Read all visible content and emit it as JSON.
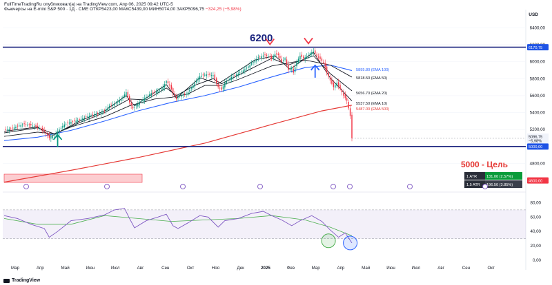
{
  "header": {
    "text_main": "FullTimeTradingRu опубликовал(а) на TradingView.com, Апр 06, 2025 09:42 UTC-5",
    "text_symbol": "Фьючерсы на E-mini S&P 500 · 1Д · CME  ОТКР5423,00  МАКС5439,00  МИН5074,00  ЗАКР5096,75 ",
    "text_change": "−324,25 (−5,98%)"
  },
  "currency": "USD",
  "footer": {
    "brand": "TradingView"
  },
  "colors": {
    "ema100": "#2962ff",
    "ema500": "#e53935",
    "level": "#1a237e",
    "rsi": "#7e57c2",
    "up": "#089981",
    "down": "#f23645"
  },
  "annotations": {
    "peak_label": "6200",
    "target_label": "5000 - Цель",
    "atr_rows": [
      {
        "label": "1 ATR",
        "value": "131.00 (2.57%)"
      },
      {
        "label": "1.5 ATR",
        "value": "196.50 (3.85%)"
      }
    ]
  },
  "chart_data": [
    {
      "type": "candlestick",
      "title": "",
      "price_ylim": [
        4520,
        6500
      ],
      "price_ticks": [
        {
          "label": "6400,00",
          "value": 6400
        },
        {
          "label": "6200,00",
          "value": 6200
        },
        {
          "label": "6000,00",
          "value": 6000
        },
        {
          "label": "5800,00",
          "value": 5800
        },
        {
          "label": "5600,00",
          "value": 5600
        },
        {
          "label": "5400,00",
          "value": 5400
        },
        {
          "label": "5200,00",
          "value": 5200
        },
        {
          "label": "4800,00",
          "value": 4800
        }
      ],
      "month_labels": [
        "Мар",
        "Апр",
        "Май",
        "Июн",
        "Июл",
        "Авг",
        "Сен",
        "Окт",
        "Ноя",
        "Дек",
        "2025",
        "Фев",
        "Мар",
        "Апр",
        "Май",
        "Июн",
        "Июл",
        "Авг",
        "Сен",
        "Окт"
      ],
      "horizontal_levels": [
        {
          "label": "6170,75",
          "value": 6170.75
        },
        {
          "label": "5000,00",
          "value": 5000
        }
      ],
      "price_close_label": "5096,75",
      "price_close_change": "−5,98%",
      "low_tag": "4600,00",
      "price_path": [
        [
          0,
          5190
        ],
        [
          4,
          5210
        ],
        [
          8,
          5240
        ],
        [
          12,
          5265
        ],
        [
          16,
          5250
        ],
        [
          20,
          5230
        ],
        [
          24,
          5180
        ],
        [
          27,
          5100
        ],
        [
          30,
          5130
        ],
        [
          33,
          5200
        ],
        [
          36,
          5260
        ],
        [
          40,
          5290
        ],
        [
          44,
          5310
        ],
        [
          48,
          5340
        ],
        [
          52,
          5370
        ],
        [
          56,
          5390
        ],
        [
          60,
          5420
        ],
        [
          63,
          5480
        ],
        [
          66,
          5500
        ],
        [
          70,
          5560
        ],
        [
          73,
          5640
        ],
        [
          75,
          5520
        ],
        [
          77,
          5450
        ],
        [
          80,
          5500
        ],
        [
          84,
          5570
        ],
        [
          88,
          5630
        ],
        [
          92,
          5650
        ],
        [
          95,
          5700
        ],
        [
          97,
          5770
        ],
        [
          99,
          5720
        ],
        [
          101,
          5630
        ],
        [
          103,
          5560
        ],
        [
          105,
          5600
        ],
        [
          109,
          5620
        ],
        [
          113,
          5720
        ],
        [
          117,
          5830
        ],
        [
          121,
          5850
        ],
        [
          125,
          5840
        ],
        [
          128,
          5700
        ],
        [
          130,
          5670
        ],
        [
          132,
          5750
        ],
        [
          136,
          5820
        ],
        [
          140,
          5860
        ],
        [
          144,
          5910
        ],
        [
          148,
          5980
        ],
        [
          152,
          6050
        ],
        [
          156,
          6080
        ],
        [
          160,
          6040
        ],
        [
          162,
          6090
        ],
        [
          164,
          6080
        ],
        [
          166,
          6000
        ],
        [
          168,
          6040
        ],
        [
          170,
          5900
        ],
        [
          172,
          5930
        ],
        [
          173,
          5870
        ],
        [
          175,
          6000
        ],
        [
          177,
          6070
        ],
        [
          179,
          6040
        ],
        [
          181,
          6060
        ],
        [
          183,
          6100
        ],
        [
          185,
          6120
        ],
        [
          187,
          6070
        ],
        [
          189,
          6030
        ],
        [
          191,
          5990
        ],
        [
          193,
          5870
        ],
        [
          195,
          5780
        ],
        [
          197,
          5700
        ],
        [
          199,
          5750
        ],
        [
          201,
          5680
        ],
        [
          203,
          5600
        ],
        [
          205,
          5540
        ],
        [
          207,
          5360
        ],
        [
          208,
          5096.75
        ]
      ],
      "series": [
        {
          "name": "5895.80 (EMA 100)",
          "values": [
            [
              0,
              5070
            ],
            [
              20,
              5110
            ],
            [
              40,
              5190
            ],
            [
              60,
              5300
            ],
            [
              80,
              5420
            ],
            [
              100,
              5520
            ],
            [
              120,
              5600
            ],
            [
              140,
              5700
            ],
            [
              160,
              5820
            ],
            [
              180,
              5930
            ],
            [
              195,
              5960
            ],
            [
              208,
              5895.8
            ]
          ]
        },
        {
          "name": "5818.50 (EMA 50)",
          "values": [
            [
              0,
              5120
            ],
            [
              20,
              5170
            ],
            [
              30,
              5150
            ],
            [
              40,
              5230
            ],
            [
              60,
              5350
            ],
            [
              75,
              5480
            ],
            [
              90,
              5560
            ],
            [
              100,
              5580
            ],
            [
              110,
              5620
            ],
            [
              120,
              5720
            ],
            [
              130,
              5720
            ],
            [
              140,
              5790
            ],
            [
              160,
              5950
            ],
            [
              180,
              6020
            ],
            [
              195,
              5960
            ],
            [
              208,
              5818.5
            ]
          ]
        },
        {
          "name": "5656.70 (EMA 20)",
          "values": [
            [
              0,
              5160
            ],
            [
              20,
              5220
            ],
            [
              30,
              5150
            ],
            [
              45,
              5280
            ],
            [
              60,
              5400
            ],
            [
              75,
              5560
            ],
            [
              85,
              5550
            ],
            [
              97,
              5690
            ],
            [
              103,
              5600
            ],
            [
              115,
              5730
            ],
            [
              125,
              5800
            ],
            [
              130,
              5740
            ],
            [
              145,
              5890
            ],
            [
              160,
              6040
            ],
            [
              170,
              5960
            ],
            [
              185,
              6070
            ],
            [
              195,
              5860
            ],
            [
              208,
              5656.7
            ]
          ]
        },
        {
          "name": "5537.50 (EMA 10)",
          "values": [
            [
              0,
              5180
            ],
            [
              20,
              5230
            ],
            [
              28,
              5120
            ],
            [
              45,
              5300
            ],
            [
              60,
              5420
            ],
            [
              73,
              5600
            ],
            [
              78,
              5480
            ],
            [
              97,
              5730
            ],
            [
              103,
              5570
            ],
            [
              117,
              5810
            ],
            [
              128,
              5740
            ],
            [
              150,
              6020
            ],
            [
              162,
              6070
            ],
            [
              171,
              5910
            ],
            [
              185,
              6110
            ],
            [
              195,
              5810
            ],
            [
              208,
              5537.5
            ]
          ]
        },
        {
          "name": "5487.00 (EMA 500)",
          "values": [
            [
              0,
              4580
            ],
            [
              40,
              4720
            ],
            [
              80,
              4870
            ],
            [
              120,
              5040
            ],
            [
              160,
              5260
            ],
            [
              190,
              5420
            ],
            [
              208,
              5487
            ]
          ]
        }
      ],
      "marks": [
        {
          "type": "arrow-up",
          "x": 32,
          "y": 5040,
          "color": "#089981"
        },
        {
          "type": "arrow-down",
          "x": 159,
          "y": 6220,
          "color": "#f23645"
        },
        {
          "type": "arrow-down",
          "x": 182,
          "y": 6230,
          "color": "#f23645"
        },
        {
          "type": "arrow-up",
          "x": 186,
          "y": 5860,
          "color": "#2962ff"
        }
      ]
    },
    {
      "type": "line",
      "name": "RSI",
      "ylim": [
        0,
        90
      ],
      "ticks": [
        {
          "label": "80,00",
          "value": 80
        },
        {
          "label": "60,00",
          "value": 60
        },
        {
          "label": "40,00",
          "value": 40
        },
        {
          "label": "20,00",
          "value": 20
        },
        {
          "label": "0,00",
          "value": 0
        }
      ],
      "bands": [
        70,
        30
      ],
      "values": [
        [
          0,
          62
        ],
        [
          8,
          58
        ],
        [
          16,
          50
        ],
        [
          24,
          44
        ],
        [
          27,
          32
        ],
        [
          32,
          40
        ],
        [
          40,
          55
        ],
        [
          50,
          58
        ],
        [
          60,
          63
        ],
        [
          66,
          70
        ],
        [
          72,
          72
        ],
        [
          75,
          58
        ],
        [
          78,
          45
        ],
        [
          85,
          55
        ],
        [
          92,
          60
        ],
        [
          97,
          64
        ],
        [
          101,
          48
        ],
        [
          104,
          44
        ],
        [
          110,
          52
        ],
        [
          117,
          62
        ],
        [
          122,
          60
        ],
        [
          128,
          46
        ],
        [
          132,
          55
        ],
        [
          140,
          58
        ],
        [
          148,
          65
        ],
        [
          155,
          68
        ],
        [
          160,
          62
        ],
        [
          166,
          56
        ],
        [
          172,
          48
        ],
        [
          177,
          55
        ],
        [
          184,
          62
        ],
        [
          190,
          54
        ],
        [
          195,
          42
        ],
        [
          200,
          32
        ],
        [
          204,
          38
        ],
        [
          208,
          24
        ]
      ],
      "signal": [
        [
          0,
          58
        ],
        [
          20,
          50
        ],
        [
          40,
          50
        ],
        [
          60,
          62
        ],
        [
          80,
          58
        ],
        [
          100,
          54
        ],
        [
          120,
          56
        ],
        [
          140,
          58
        ],
        [
          160,
          62
        ],
        [
          180,
          56
        ],
        [
          195,
          46
        ],
        [
          208,
          34
        ]
      ],
      "circles": [
        {
          "x": 194,
          "y": 27,
          "color": "#4caf50"
        },
        {
          "x": 207,
          "y": 24,
          "color": "#2962ff"
        }
      ]
    }
  ]
}
